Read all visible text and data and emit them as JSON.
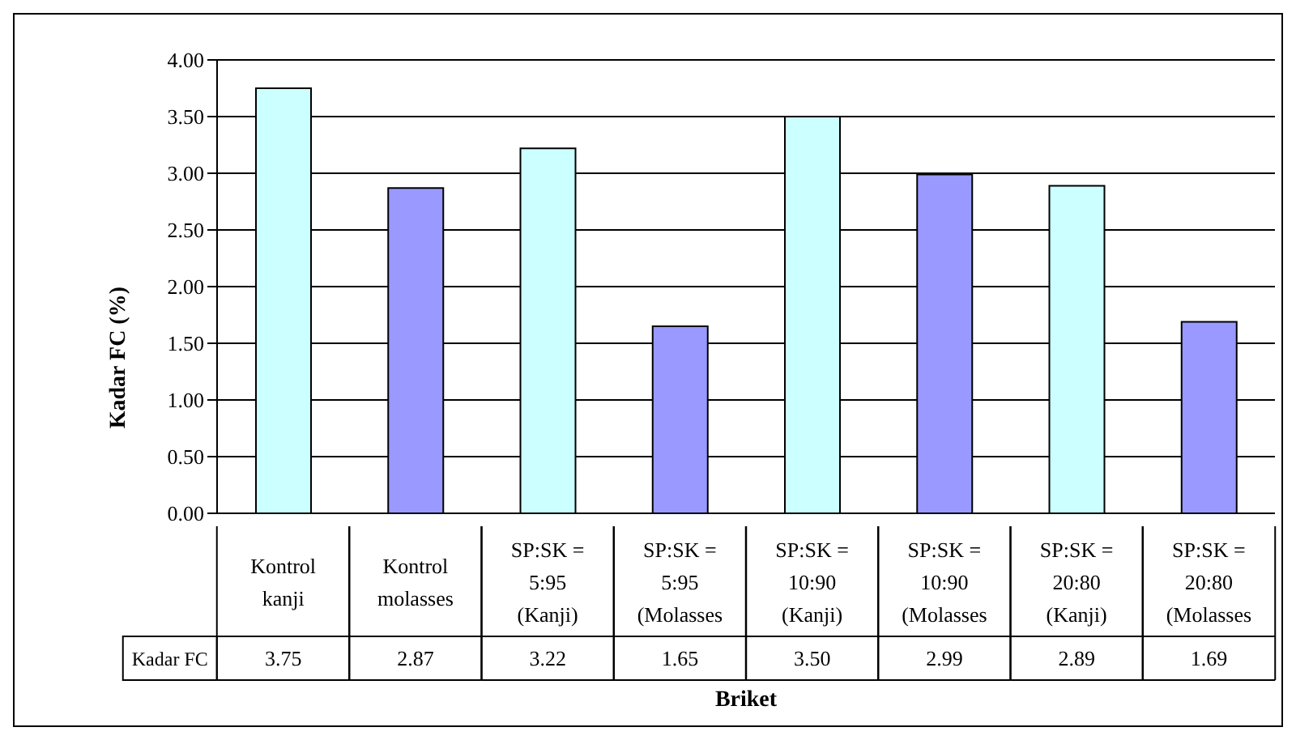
{
  "chart_data": {
    "type": "bar",
    "xlabel": "Briket",
    "ylabel": "Kadar FC (%)",
    "categories": [
      "Kontrol kanji",
      "Kontrol molasses",
      "SP:SK = 5:95 (Kanji)",
      "SP:SK = 5:95 (Molasses",
      "SP:SK = 10:90 (Kanji)",
      "SP:SK = 10:90 (Molasses",
      "SP:SK = 20:80 (Kanji)",
      "SP:SK = 20:80 (Molasses"
    ],
    "series": [
      {
        "name": "Kadar FC",
        "values": [
          3.75,
          2.87,
          3.22,
          1.65,
          3.5,
          2.99,
          2.89,
          1.69
        ],
        "value_labels": [
          "3.75",
          "2.87",
          "3.22",
          "1.65",
          "3.50",
          "2.99",
          "2.89",
          "1.69"
        ],
        "colors": [
          "#ccffff",
          "#9999ff",
          "#ccffff",
          "#9999ff",
          "#ccffff",
          "#9999ff",
          "#ccffff",
          "#9999ff"
        ]
      }
    ],
    "ylim": [
      0,
      4
    ],
    "yticks": [
      {
        "value": 0,
        "label": "0.00"
      },
      {
        "value": 0.5,
        "label": "0.50"
      },
      {
        "value": 1,
        "label": "1.00"
      },
      {
        "value": 1.5,
        "label": "1.50"
      },
      {
        "value": 2,
        "label": "2.00"
      },
      {
        "value": 2.5,
        "label": "2.50"
      },
      {
        "value": 3,
        "label": "3.00"
      },
      {
        "value": 3.5,
        "label": "3.50"
      },
      {
        "value": 4,
        "label": "4.00"
      }
    ],
    "grid": "y",
    "legend": false
  }
}
